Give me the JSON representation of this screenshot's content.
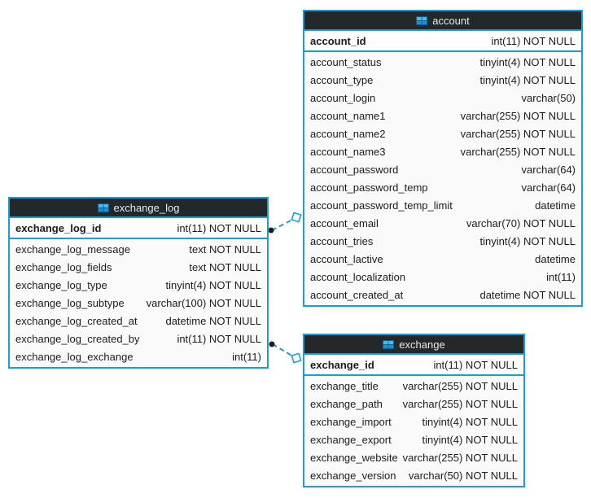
{
  "colors": {
    "accent": "#1b9dd9",
    "header_bg": "#24282b",
    "header_text": "#e8e9e9",
    "body_bg": "#fafafa",
    "text": "#1c1c1c",
    "connector_dot": "#1a1d1f"
  },
  "diagram": {
    "tables": [
      {
        "title": "exchange_log",
        "icon": "table-icon",
        "primary_key": {
          "name": "exchange_log_id",
          "type": "int(11) NOT NULL"
        },
        "fields": [
          {
            "name": "exchange_log_message",
            "type": "text NOT NULL"
          },
          {
            "name": "exchange_log_fields",
            "type": "text NOT NULL"
          },
          {
            "name": "exchange_log_type",
            "type": "tinyint(4) NOT NULL"
          },
          {
            "name": "exchange_log_subtype",
            "type": "varchar(100) NOT NULL"
          },
          {
            "name": "exchange_log_created_at",
            "type": "datetime NOT NULL"
          },
          {
            "name": "exchange_log_created_by",
            "type": "int(11) NOT NULL"
          },
          {
            "name": "exchange_log_exchange",
            "type": "int(11)"
          }
        ]
      },
      {
        "title": "account",
        "icon": "table-icon",
        "primary_key": {
          "name": "account_id",
          "type": "int(11) NOT NULL"
        },
        "fields": [
          {
            "name": "account_status",
            "type": "tinyint(4) NOT NULL"
          },
          {
            "name": "account_type",
            "type": "tinyint(4) NOT NULL"
          },
          {
            "name": "account_login",
            "type": "varchar(50)"
          },
          {
            "name": "account_name1",
            "type": "varchar(255) NOT NULL"
          },
          {
            "name": "account_name2",
            "type": "varchar(255) NOT NULL"
          },
          {
            "name": "account_name3",
            "type": "varchar(255) NOT NULL"
          },
          {
            "name": "account_password",
            "type": "varchar(64)"
          },
          {
            "name": "account_password_temp",
            "type": "varchar(64)"
          },
          {
            "name": "account_password_temp_limit",
            "type": "datetime"
          },
          {
            "name": "account_email",
            "type": "varchar(70) NOT NULL"
          },
          {
            "name": "account_tries",
            "type": "tinyint(4) NOT NULL"
          },
          {
            "name": "account_lactive",
            "type": "datetime"
          },
          {
            "name": "account_localization",
            "type": "int(11)"
          },
          {
            "name": "account_created_at",
            "type": "datetime NOT NULL"
          }
        ]
      },
      {
        "title": "exchange",
        "icon": "table-icon",
        "primary_key": {
          "name": "exchange_id",
          "type": "int(11) NOT NULL"
        },
        "fields": [
          {
            "name": "exchange_title",
            "type": "varchar(255) NOT NULL"
          },
          {
            "name": "exchange_path",
            "type": "varchar(255) NOT NULL"
          },
          {
            "name": "exchange_import",
            "type": "tinyint(4) NOT NULL"
          },
          {
            "name": "exchange_export",
            "type": "tinyint(4) NOT NULL"
          },
          {
            "name": "exchange_website",
            "type": "varchar(255) NOT NULL"
          },
          {
            "name": "exchange_version",
            "type": "varchar(50) NOT NULL"
          }
        ]
      }
    ],
    "connections": [
      {
        "from_table": "exchange_log",
        "from_field": "exchange_log_id",
        "to_table": "account",
        "style": "dashed"
      },
      {
        "from_table": "exchange_log",
        "from_field": "exchange_log_created_by",
        "to_table": "exchange",
        "style": "dashed"
      }
    ]
  }
}
